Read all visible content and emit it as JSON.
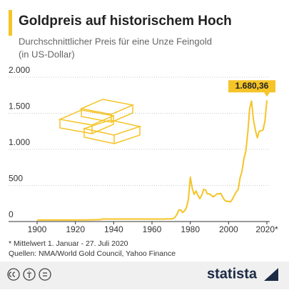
{
  "chart_data": {
    "type": "line",
    "title": "Goldpreis auf historischem Hoch",
    "subtitle": [
      "Durchschnittlicher Preis für eine Unze Feingold",
      "(in US-Dollar)"
    ],
    "x": [
      1900,
      1910,
      1920,
      1933,
      1934,
      1940,
      1950,
      1960,
      1967,
      1968,
      1970,
      1971,
      1972,
      1973,
      1974,
      1975,
      1976,
      1977,
      1978,
      1979,
      1980,
      1981,
      1982,
      1983,
      1984,
      1985,
      1986,
      1987,
      1988,
      1989,
      1990,
      1991,
      1992,
      1993,
      1994,
      1995,
      1996,
      1997,
      1998,
      1999,
      2000,
      2001,
      2002,
      2003,
      2004,
      2005,
      2006,
      2007,
      2008,
      2009,
      2010,
      2011,
      2012,
      2013,
      2014,
      2015,
      2016,
      2017,
      2018,
      2019,
      2020
    ],
    "values": [
      20.67,
      20.67,
      20.67,
      26,
      35,
      35,
      35,
      35,
      35,
      39,
      36,
      41,
      58,
      97,
      159,
      161,
      125,
      148,
      193,
      306,
      615,
      460,
      376,
      424,
      361,
      317,
      368,
      447,
      437,
      381,
      384,
      362,
      344,
      360,
      384,
      384,
      388,
      331,
      294,
      279,
      279,
      271,
      310,
      363,
      410,
      445,
      604,
      695,
      872,
      972,
      1225,
      1572,
      1669,
      1411,
      1266,
      1160,
      1251,
      1257,
      1268,
      1393,
      1680.36
    ],
    "value_labels": [
      null,
      null,
      null,
      null,
      null,
      null,
      null,
      null,
      null,
      null,
      null,
      null,
      null,
      null,
      null,
      null,
      null,
      null,
      null,
      null,
      null,
      null,
      null,
      null,
      null,
      null,
      null,
      null,
      null,
      null,
      null,
      null,
      null,
      null,
      null,
      null,
      null,
      null,
      null,
      null,
      null,
      null,
      null,
      null,
      null,
      null,
      null,
      null,
      null,
      null,
      null,
      null,
      null,
      null,
      null,
      null,
      null,
      null,
      null,
      null,
      "1.680,36"
    ],
    "color": "#f5c427",
    "xlim": [
      1900,
      2020
    ],
    "xticks": [
      1900,
      1920,
      1940,
      1960,
      1980,
      2000,
      {
        "value": 2020,
        "label": "2020*"
      }
    ],
    "ylim": [
      0,
      2000
    ],
    "yticks": [
      0,
      500,
      {
        "value": 1000,
        "label": "1.000"
      },
      {
        "value": 1500,
        "label": "1.500"
      },
      {
        "value": 2000,
        "label": "2.000"
      }
    ],
    "grid": true,
    "notes": [
      "* Mittelwert 1. Januar - 27. Juli 2020",
      "Quellen: NMA/World Gold Council, Yahoo Finance"
    ],
    "brand": "statista"
  }
}
